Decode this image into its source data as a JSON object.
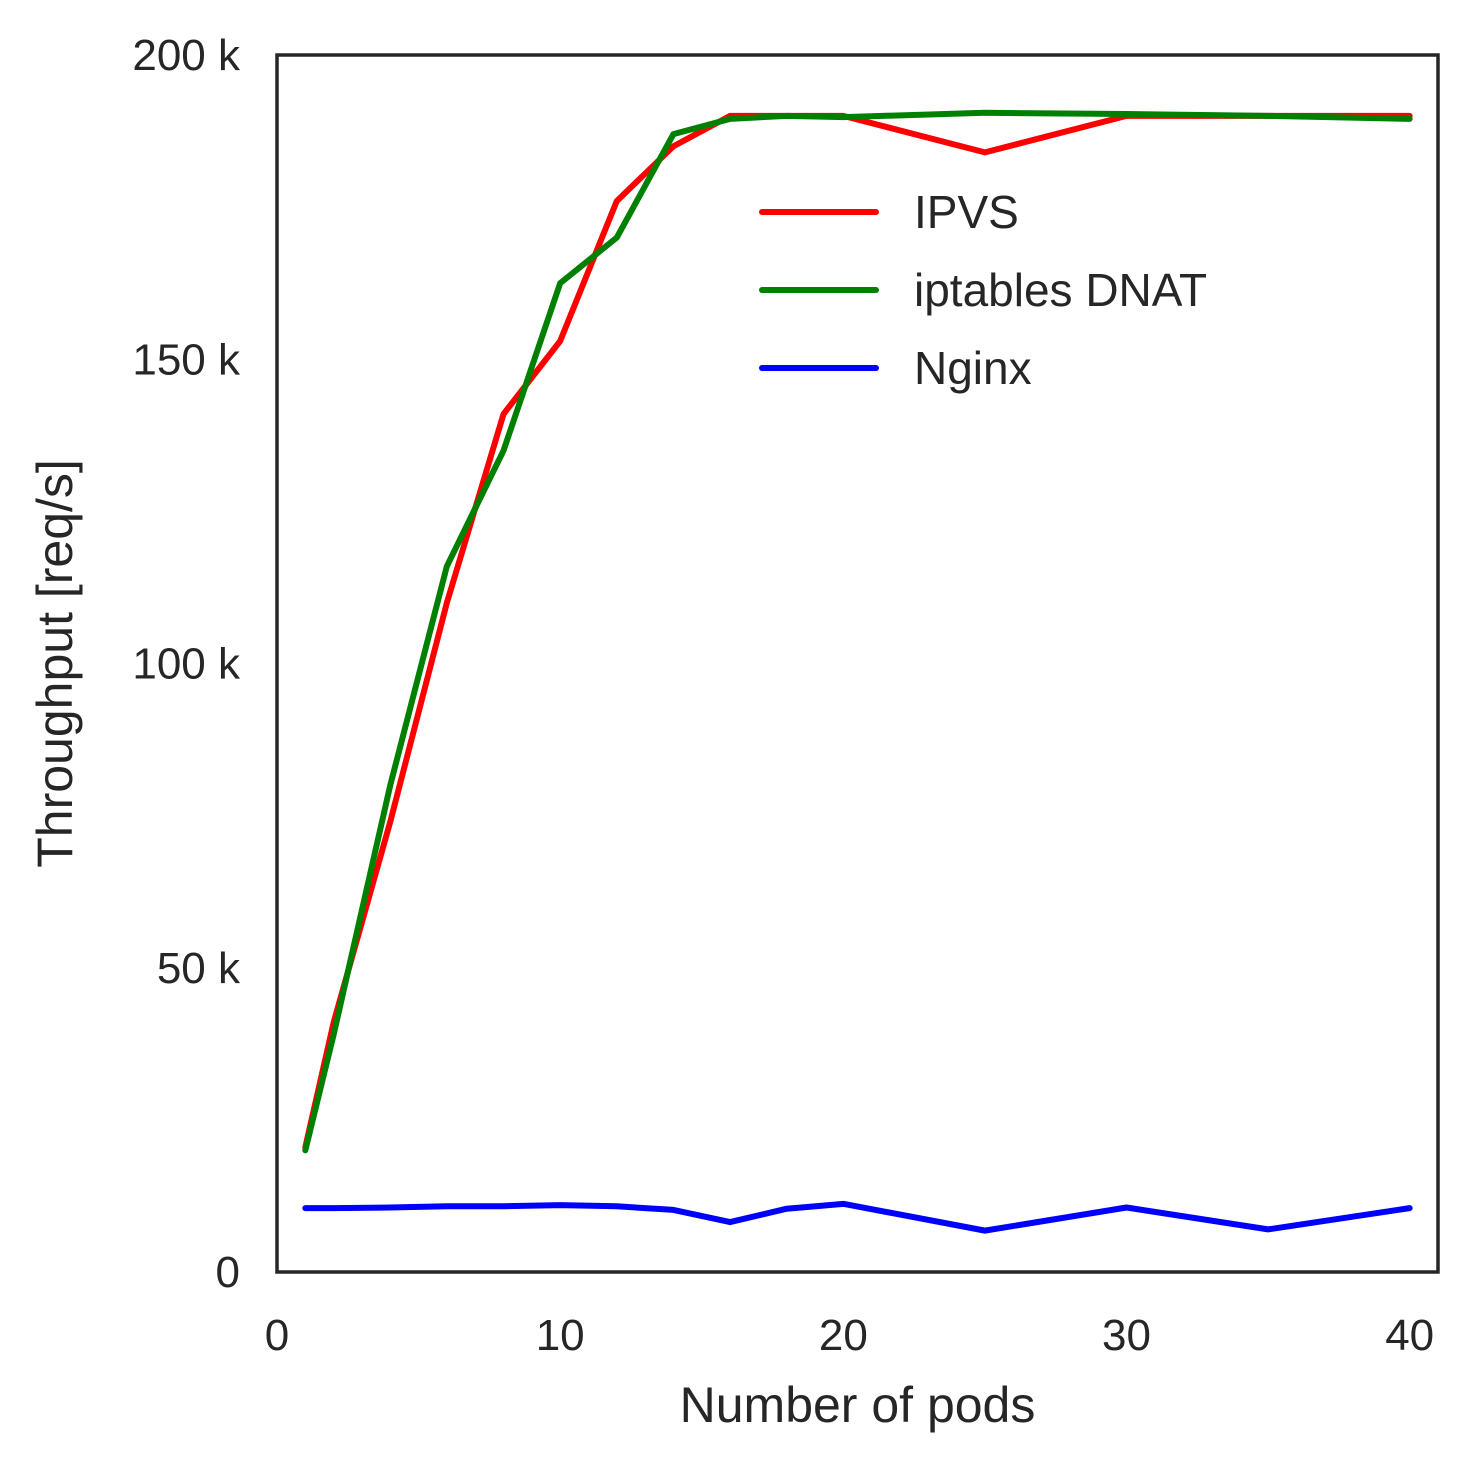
{
  "chart_data": {
    "type": "line",
    "title": "",
    "xlabel": "Number of pods",
    "ylabel": "Throughput [req/s]",
    "xlim": [
      0,
      41
    ],
    "ylim": [
      0,
      200000
    ],
    "xticks": [
      0,
      10,
      20,
      30,
      40
    ],
    "xtick_labels": [
      "0",
      "10",
      "20",
      "30",
      "40"
    ],
    "yticks": [
      0,
      50000,
      100000,
      150000,
      200000
    ],
    "ytick_labels": [
      "0",
      "50 k",
      "100 k",
      "150 k",
      "200 k"
    ],
    "grid": false,
    "legend_position": "upper-right (inside plot)",
    "series": [
      {
        "name": "IPVS",
        "color": "#ff0000",
        "x": [
          1,
          2,
          4,
          6,
          8,
          10,
          12,
          14,
          16,
          18,
          20,
          25,
          30,
          35,
          40
        ],
        "y": [
          20500,
          41000,
          74000,
          110000,
          141000,
          153000,
          176000,
          185000,
          190000,
          190000,
          190000,
          184000,
          190000,
          190000,
          190000
        ]
      },
      {
        "name": "iptables DNAT",
        "color": "#008000",
        "x": [
          1,
          2,
          4,
          6,
          8,
          10,
          12,
          14,
          16,
          18,
          20,
          25,
          30,
          35,
          40
        ],
        "y": [
          20000,
          39000,
          80000,
          116000,
          135000,
          162500,
          170000,
          187000,
          189500,
          190000,
          189800,
          190500,
          190300,
          190000,
          189500
        ]
      },
      {
        "name": "Nginx",
        "color": "#0000ff",
        "x": [
          1,
          2,
          4,
          6,
          8,
          10,
          12,
          14,
          16,
          18,
          20,
          25,
          30,
          35,
          40
        ],
        "y": [
          10500,
          10500,
          10600,
          10800,
          10800,
          11000,
          10800,
          10200,
          8200,
          10400,
          11200,
          6800,
          10600,
          7000,
          10500
        ]
      }
    ]
  }
}
